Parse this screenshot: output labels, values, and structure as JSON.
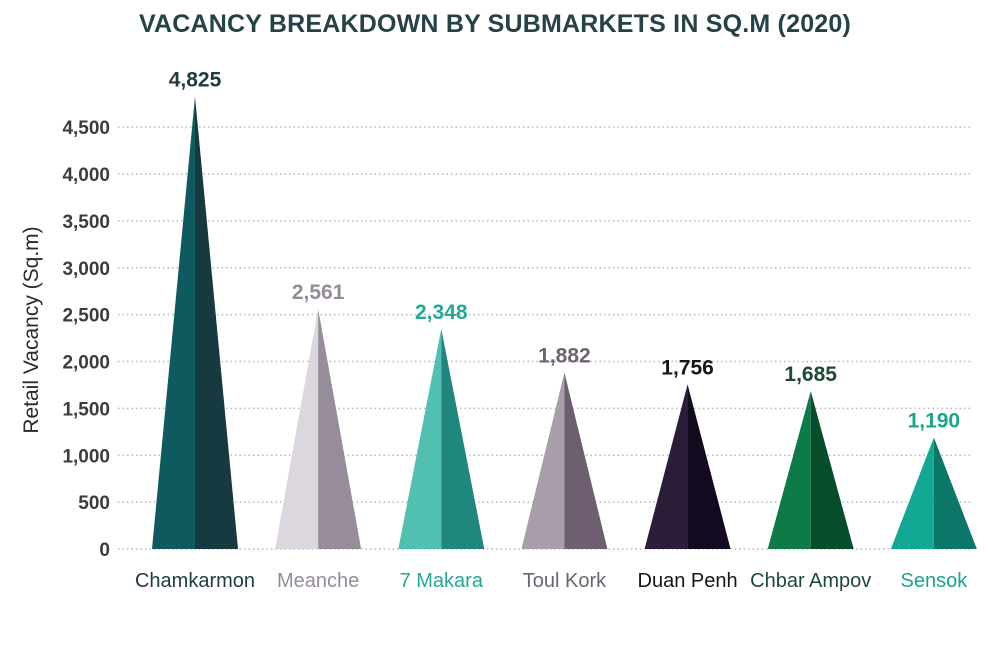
{
  "chart_data": {
    "type": "bar",
    "title": "VACANCY BREAKDOWN BY SUBMARKETS IN SQ.M (2020)",
    "xlabel": "",
    "ylabel": "Retail Vacancy (Sq.m)",
    "ylim": [
      0,
      4800
    ],
    "yticks": [
      0,
      500,
      1000,
      1500,
      2000,
      2500,
      3000,
      3500,
      4000,
      4500
    ],
    "ytick_labels": [
      "0",
      "500",
      "1,000",
      "1,500",
      "2,000",
      "2,500",
      "3,000",
      "3,500",
      "4,000",
      "4,500"
    ],
    "grid": "horizontal-dotted",
    "categories": [
      "Chamkarmon",
      "Meanche",
      "7 Makara",
      "Toul Kork",
      "Duan Penh",
      "Chbar Ampov",
      "Sensok"
    ],
    "values": [
      4825,
      2561,
      2348,
      1882,
      1756,
      1685,
      1190
    ],
    "value_labels": [
      "4,825",
      "2,561",
      "2,348",
      "1,882",
      "1,756",
      "1,685",
      "1,190"
    ],
    "colors": [
      {
        "light": "#0f5a5e",
        "dark": "#163a3f",
        "label": "#1e3b3e"
      },
      {
        "light": "#dcd7df",
        "dark": "#978c99",
        "label": "#958b98"
      },
      {
        "light": "#52c0b0",
        "dark": "#20877f",
        "label": "#25a896"
      },
      {
        "light": "#a89ea9",
        "dark": "#6d5f70",
        "label": "#6e6372"
      },
      {
        "light": "#2b1c38",
        "dark": "#130a1f",
        "label": "#161616"
      },
      {
        "light": "#0e7a45",
        "dark": "#064d2c",
        "label": "#1d4a34"
      },
      {
        "light": "#12a893",
        "dark": "#0a7769",
        "label": "#1aa58f"
      }
    ]
  }
}
